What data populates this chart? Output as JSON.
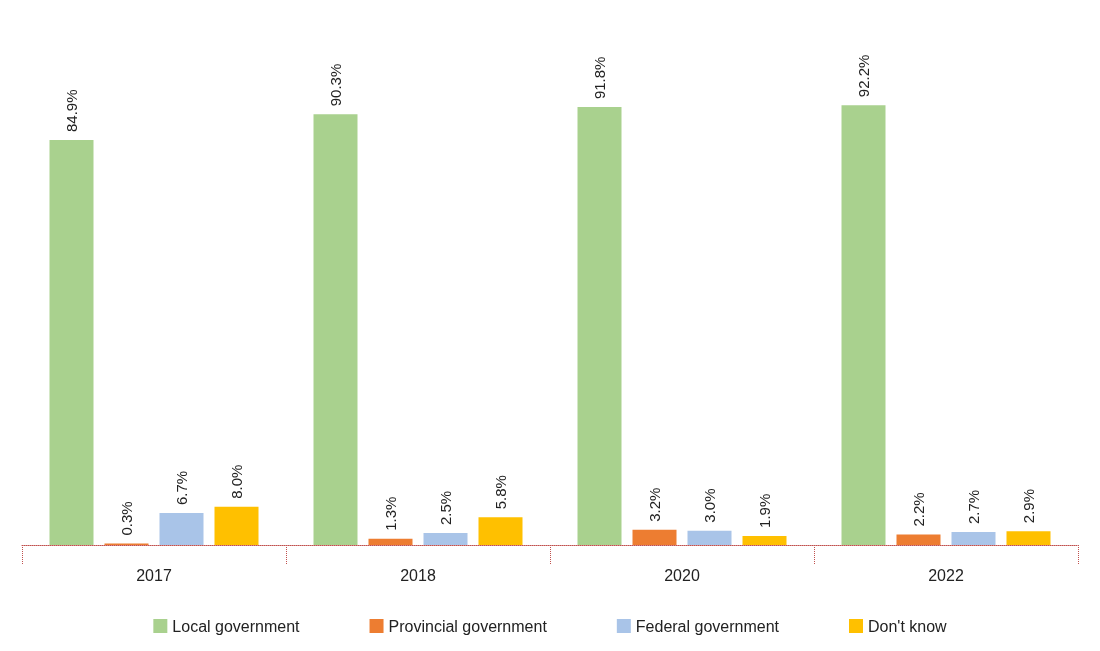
{
  "chart_data": {
    "type": "bar",
    "categories": [
      "2017",
      "2018",
      "2020",
      "2022"
    ],
    "series": [
      {
        "name": "Local government",
        "color": "#a9d18e",
        "values": [
          84.9,
          90.3,
          91.8,
          92.2
        ],
        "value_labels": [
          "84.9%",
          "90.3%",
          "91.8%",
          "92.2%"
        ]
      },
      {
        "name": "Provincial government",
        "color": "#ed7d31",
        "values": [
          0.3,
          1.3,
          3.2,
          2.2
        ],
        "value_labels": [
          "0.3%",
          "1.3%",
          "3.2%",
          "2.2%"
        ]
      },
      {
        "name": "Federal government",
        "color": "#a9c4e8",
        "values": [
          6.7,
          2.5,
          3.0,
          2.7
        ],
        "value_labels": [
          "6.7%",
          "2.5%",
          "3.0%",
          "2.7%"
        ]
      },
      {
        "name": "Don't know",
        "color": "#ffc000",
        "values": [
          8.0,
          5.8,
          1.9,
          2.9
        ],
        "value_labels": [
          "8.0%",
          "5.8%",
          "1.9%",
          "2.9%"
        ]
      }
    ],
    "legend": "bottom"
  }
}
